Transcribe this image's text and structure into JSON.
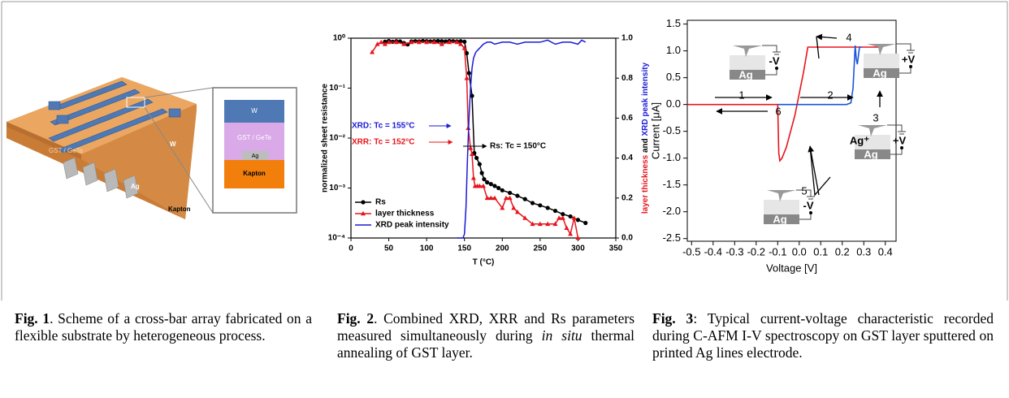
{
  "figure1": {
    "slab_labels": [
      "GST / GeTe",
      "W",
      "Ag",
      "Kapton"
    ],
    "inset_labels": [
      "W",
      "GST / GeTe",
      "Ag",
      "Kapton"
    ]
  },
  "chart_data": [
    {
      "type": "line",
      "xlabel": "T (°C)",
      "ylabel": "normalized sheet resistance",
      "y2label_parts": [
        {
          "text": "layer thickness",
          "color": "#e8141b"
        },
        {
          "text": " and ",
          "color": "#000000"
        },
        {
          "text": "XRD peak intensity",
          "color": "#1a1ad8"
        }
      ],
      "xlim": [
        0,
        350
      ],
      "xticks": [
        0,
        50,
        100,
        150,
        200,
        250,
        300,
        350
      ],
      "yscale": "log",
      "ylim": [
        0.0001,
        1
      ],
      "yticks": [
        {
          "value": 0.0001,
          "label": "10⁻⁴"
        },
        {
          "value": 0.001,
          "label": "10⁻³"
        },
        {
          "value": 0.01,
          "label": "10⁻²"
        },
        {
          "value": 0.1,
          "label": "10⁻¹"
        },
        {
          "value": 1,
          "label": "10⁰"
        }
      ],
      "y2lim": [
        0,
        1
      ],
      "y2ticks": [
        {
          "value": 0,
          "label": "0.0"
        },
        0.2,
        0.4,
        0.6,
        0.8,
        {
          "value": 1,
          "label": "1.0"
        }
      ],
      "legend": "lower left",
      "series": [
        {
          "name": "Rs",
          "color": "#000000",
          "marker": "circle",
          "axis": "y",
          "x": [
            45,
            50,
            55,
            60,
            65,
            70,
            75,
            80,
            85,
            90,
            95,
            100,
            105,
            110,
            115,
            120,
            125,
            130,
            135,
            140,
            145,
            150,
            153,
            156,
            160,
            163,
            166,
            170,
            173,
            176,
            180,
            185,
            190,
            195,
            200,
            210,
            220,
            230,
            240,
            250,
            260,
            270,
            280,
            290,
            300,
            310
          ],
          "values": [
            0.85,
            0.88,
            0.85,
            0.87,
            0.86,
            0.8,
            0.75,
            0.86,
            0.87,
            0.86,
            0.88,
            0.87,
            0.86,
            0.87,
            0.88,
            0.87,
            0.86,
            0.88,
            0.87,
            0.86,
            0.87,
            0.85,
            0.5,
            0.2,
            0.07,
            0.005,
            0.004,
            0.003,
            0.002,
            0.0015,
            0.0013,
            0.0012,
            0.0011,
            0.001,
            0.0009,
            0.0008,
            0.0007,
            0.0006,
            0.0005,
            0.00045,
            0.0004,
            0.00035,
            0.0003,
            0.00027,
            0.00023,
            0.0002
          ]
        },
        {
          "name": "layer thickness",
          "color": "#e8141b",
          "marker": "triangle",
          "axis": "y2",
          "x": [
            28,
            35,
            40,
            45,
            50,
            60,
            70,
            80,
            90,
            100,
            110,
            120,
            130,
            140,
            145,
            150,
            153,
            155,
            158,
            160,
            162,
            164,
            167,
            170,
            175,
            180,
            185,
            190,
            200,
            205,
            210,
            215,
            220,
            230,
            240,
            250,
            260,
            270,
            275,
            280,
            285,
            290,
            295,
            300
          ],
          "values": [
            0.93,
            0.97,
            0.98,
            0.97,
            0.98,
            0.98,
            0.97,
            0.98,
            0.98,
            0.98,
            0.98,
            0.97,
            0.98,
            0.98,
            0.97,
            0.95,
            0.8,
            0.55,
            0.45,
            0.42,
            0.3,
            0.26,
            0.26,
            0.26,
            0.26,
            0.2,
            0.2,
            0.2,
            0.15,
            0.2,
            0.2,
            0.15,
            0.13,
            0.1,
            0.07,
            0.07,
            0.07,
            0.07,
            0.1,
            0.1,
            0.05,
            0.02,
            0.1,
            0
          ]
        },
        {
          "name": "XRD peak intensity",
          "color": "#1a1ad8",
          "marker": "none",
          "axis": "y2",
          "x": [
            140,
            148,
            150,
            152,
            154,
            156,
            158,
            160,
            162,
            165,
            170,
            175,
            180,
            185,
            190,
            200,
            210,
            220,
            230,
            240,
            250,
            260,
            270,
            280,
            290,
            300,
            305,
            310
          ],
          "values": [
            0,
            0,
            0.02,
            0.15,
            0.4,
            0.6,
            0.75,
            0.85,
            0.9,
            0.93,
            0.95,
            0.97,
            0.98,
            0.98,
            0.97,
            0.98,
            0.98,
            0.97,
            0.98,
            0.98,
            0.98,
            0.99,
            0.97,
            0.98,
            0.98,
            0.97,
            0.99,
            0.98
          ]
        }
      ],
      "annotations": [
        {
          "text": "XRD: Tc = 155°C",
          "color": "#1a1ad8"
        },
        {
          "text": "XRR: Tc = 152°C",
          "color": "#e8141b"
        },
        {
          "text": "Rs: Tc = 150°C",
          "color": "#000000"
        }
      ]
    },
    {
      "type": "line",
      "xlabel": "Voltage [V]",
      "ylabel": "Current [μA]",
      "xlim": [
        -0.52,
        0.45
      ],
      "xticks": [
        -0.5,
        -0.4,
        -0.3,
        -0.2,
        -0.1,
        {
          "value": 0,
          "label": "0.0"
        },
        0.1,
        0.2,
        0.3,
        0.4
      ],
      "ylim": [
        -2.55,
        1.57
      ],
      "yticks": [
        -2.5,
        {
          "value": -2,
          "label": "-2.0"
        },
        -1.5,
        {
          "value": -1,
          "label": "-1.0"
        },
        -0.5,
        {
          "value": 0,
          "label": "0.0"
        },
        0.5,
        {
          "value": 1,
          "label": "1.0"
        },
        1.5
      ],
      "series": [
        {
          "color": "#e8141b",
          "x": [
            -0.52,
            -0.1,
            -0.095,
            -0.09,
            -0.08,
            -0.06,
            -0.04,
            -0.02,
            0,
            0.02,
            0.04,
            0.38
          ],
          "values": [
            0,
            0,
            -0.9,
            -1.05,
            -1.0,
            -0.8,
            -0.5,
            -0.2,
            0.2,
            0.6,
            1.07,
            1.07
          ]
        },
        {
          "color": "#1a55d8",
          "x": [
            -0.1,
            0.22,
            0.24,
            0.25,
            0.26,
            0.265,
            0.27,
            0.28,
            0.29
          ],
          "values": [
            0,
            0,
            0.03,
            0.3,
            1.1,
            0.85,
            0.75,
            1.07,
            1.07
          ]
        }
      ],
      "annotations": [
        "1",
        "2",
        "3",
        "4",
        "5",
        "6"
      ],
      "insets": [
        [
          "Ag",
          "-V"
        ],
        [
          "+V",
          "Ag"
        ],
        [
          "Ag⁺",
          "+V",
          "Ag"
        ],
        [
          "-V",
          "Ag"
        ]
      ]
    }
  ],
  "captions": [
    {
      "label": "Fig. 1",
      "text": ". Scheme of a cross-bar array fabricated on a flexible substrate by heterogeneous process."
    },
    {
      "label": "Fig. 2",
      "text": ". Combined XRD, XRR and Rs parameters measured simultaneously during ",
      "italic": "in situ",
      "text_after": " thermal annealing of GST layer."
    },
    {
      "label": "Fig. 3",
      "text": ": Typical current-voltage characteristic recorded during C-AFM I-V spectroscopy on GST layer sputtered on printed Ag lines electrode."
    }
  ]
}
